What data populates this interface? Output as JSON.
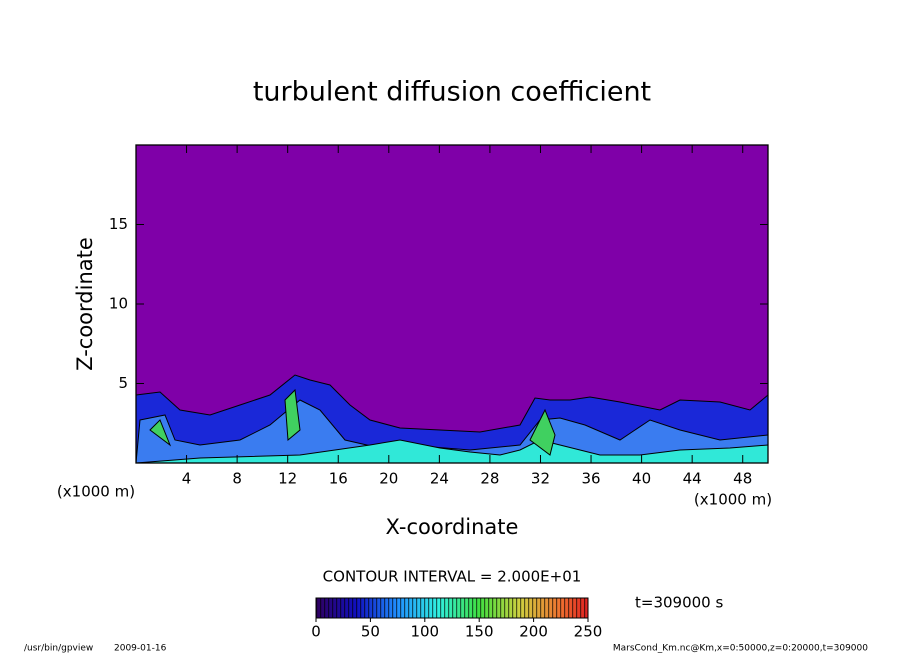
{
  "chart_data": {
    "type": "contour",
    "title": "turbulent diffusion coefficient",
    "x_label": "X-coordinate",
    "y_label": "Z-coordinate",
    "x_unit": "(x1000 m)",
    "y_unit": "(x1000 m)",
    "xlim": [
      0,
      50
    ],
    "xticks": [
      4,
      8,
      12,
      16,
      20,
      24,
      28,
      32,
      36,
      40,
      44,
      48
    ],
    "ylim": [
      0,
      20
    ],
    "yticks": [
      5,
      10,
      15
    ],
    "colorbar": {
      "lim": [
        0,
        250
      ],
      "ticks": [
        0,
        50,
        100,
        150,
        200,
        250
      ]
    },
    "contour_interval": "CONTOUR INTERVAL = 2.000E+01",
    "time_label": "t=309000 s",
    "footer_program": "/usr/bin/gpview",
    "footer_date": "2009-01-16",
    "footer_right": "MarsCond_Km.nc@Km,x=0:50000,z=0:20000,t=309000"
  }
}
